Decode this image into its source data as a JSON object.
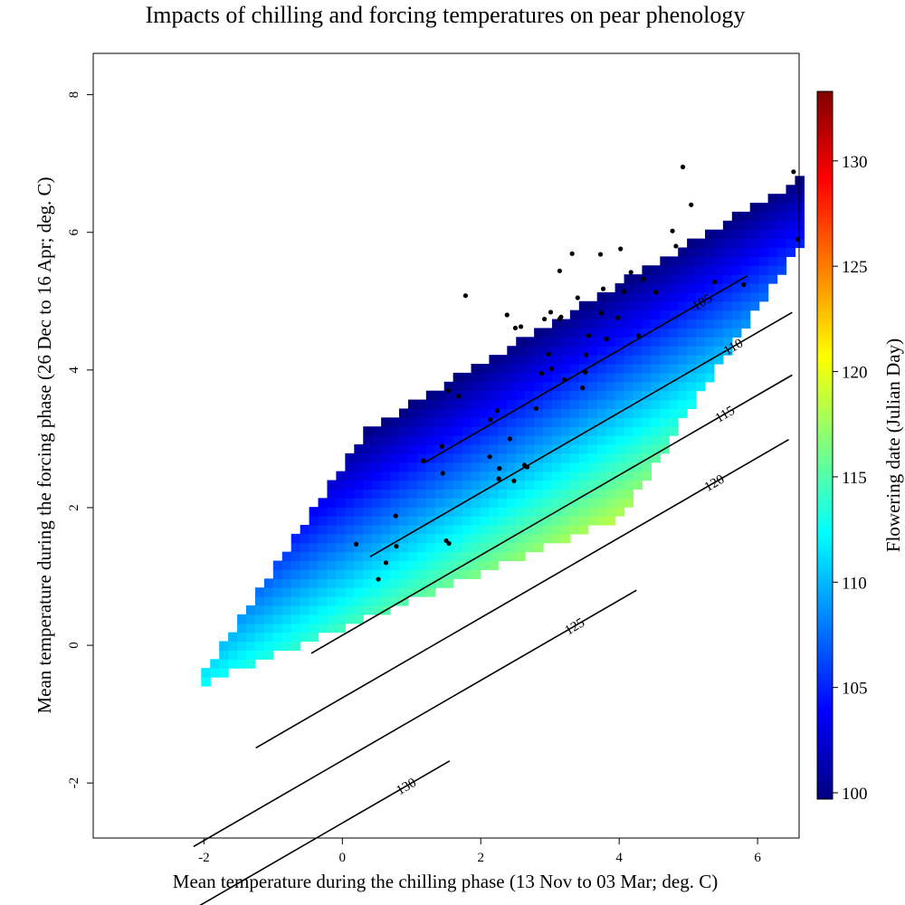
{
  "chart_data": {
    "type": "heatmap",
    "title": "Impacts of chilling and forcing temperatures on pear phenology",
    "xlabel": "Mean temperature during the chilling phase (13 Nov to 03 Mar; deg. C)",
    "ylabel": "Mean temperature during the forcing phase (26 Dec to 16 Apr; deg. C)",
    "colorbar_label": "Flowering date (Julian Day)",
    "xlim": [
      -3.6,
      6.6
    ],
    "ylim": [
      -2.8,
      8.6
    ],
    "x_ticks": [
      -2,
      0,
      2,
      4,
      6
    ],
    "y_ticks": [
      -2,
      0,
      2,
      4,
      6,
      8
    ],
    "x_tick_labels": [
      "-2",
      "0",
      "2",
      "4",
      "6"
    ],
    "y_tick_labels": [
      "-2",
      "0",
      "2",
      "4",
      "6",
      "8"
    ],
    "colorbar_range": [
      99.7,
      133.3
    ],
    "colorbar_ticks": [
      100,
      105,
      110,
      115,
      120,
      125,
      130
    ],
    "colorbar_tick_labels": [
      "100",
      "105",
      "110",
      "115",
      "120",
      "125",
      "130"
    ],
    "colormap": [
      "#00007f",
      "#0000ff",
      "#007fff",
      "#00ffff",
      "#7fff7f",
      "#ffff00",
      "#ff7f00",
      "#ff0000",
      "#7f0000"
    ],
    "surface_model": {
      "predicts": "Flowering date (Julian Day)",
      "intercept": 115.8,
      "chill_coef": 3.2,
      "forcing_coef": -5.5,
      "grid_step": 0.13
    },
    "contours": [
      {
        "level": 105,
        "label": "105",
        "x_range": [
          1.2,
          5.85
        ]
      },
      {
        "level": 110,
        "label": "110",
        "x_range": [
          0.4,
          6.5
        ]
      },
      {
        "level": 115,
        "label": "115",
        "x_range": [
          -0.45,
          6.5
        ]
      },
      {
        "level": 120,
        "label": "120",
        "x_range": [
          -1.25,
          6.45
        ]
      },
      {
        "level": 125,
        "label": "125",
        "x_range": [
          -2.15,
          4.25
        ]
      },
      {
        "level": 130,
        "label": "130",
        "x_range": [
          -2.95,
          1.55
        ]
      }
    ],
    "series": [
      {
        "type": "scatter",
        "points": [
          [
            4.92,
            6.95
          ],
          [
            6.52,
            6.88
          ],
          [
            5.04,
            6.4
          ],
          [
            6.58,
            5.9
          ],
          [
            4.77,
            6.02
          ],
          [
            4.82,
            5.8
          ],
          [
            3.32,
            5.69
          ],
          [
            3.73,
            5.68
          ],
          [
            4.02,
            5.76
          ],
          [
            3.14,
            5.44
          ],
          [
            4.17,
            5.42
          ],
          [
            4.35,
            5.32
          ],
          [
            5.38,
            5.28
          ],
          [
            5.8,
            5.24
          ],
          [
            3.77,
            5.18
          ],
          [
            4.07,
            5.14
          ],
          [
            4.53,
            5.13
          ],
          [
            1.78,
            5.08
          ],
          [
            3.4,
            5.05
          ],
          [
            3.01,
            4.84
          ],
          [
            3.16,
            4.77
          ],
          [
            3.14,
            4.74
          ],
          [
            2.38,
            4.8
          ],
          [
            2.92,
            4.74
          ],
          [
            3.74,
            4.83
          ],
          [
            3.98,
            4.76
          ],
          [
            2.5,
            4.61
          ],
          [
            2.58,
            4.63
          ],
          [
            3.56,
            4.5
          ],
          [
            3.82,
            4.45
          ],
          [
            4.28,
            4.5
          ],
          [
            2.98,
            4.23
          ],
          [
            3.52,
            4.22
          ],
          [
            3.02,
            4.02
          ],
          [
            3.51,
            3.97
          ],
          [
            2.88,
            3.95
          ],
          [
            3.21,
            3.86
          ],
          [
            3.47,
            3.74
          ],
          [
            1.53,
            3.7
          ],
          [
            1.68,
            3.62
          ],
          [
            2.24,
            3.41
          ],
          [
            2.8,
            3.44
          ],
          [
            2.14,
            3.28
          ],
          [
            2.42,
            3.0
          ],
          [
            1.44,
            2.89
          ],
          [
            1.17,
            2.68
          ],
          [
            2.13,
            2.74
          ],
          [
            2.63,
            2.62
          ],
          [
            2.67,
            2.59
          ],
          [
            2.27,
            2.57
          ],
          [
            1.45,
            2.5
          ],
          [
            2.26,
            2.42
          ],
          [
            2.48,
            2.39
          ],
          [
            0.77,
            1.88
          ],
          [
            1.5,
            1.52
          ],
          [
            1.54,
            1.48
          ],
          [
            0.2,
            1.47
          ],
          [
            0.78,
            1.44
          ],
          [
            0.63,
            1.2
          ],
          [
            0.52,
            0.96
          ]
        ]
      }
    ],
    "grid": false
  }
}
